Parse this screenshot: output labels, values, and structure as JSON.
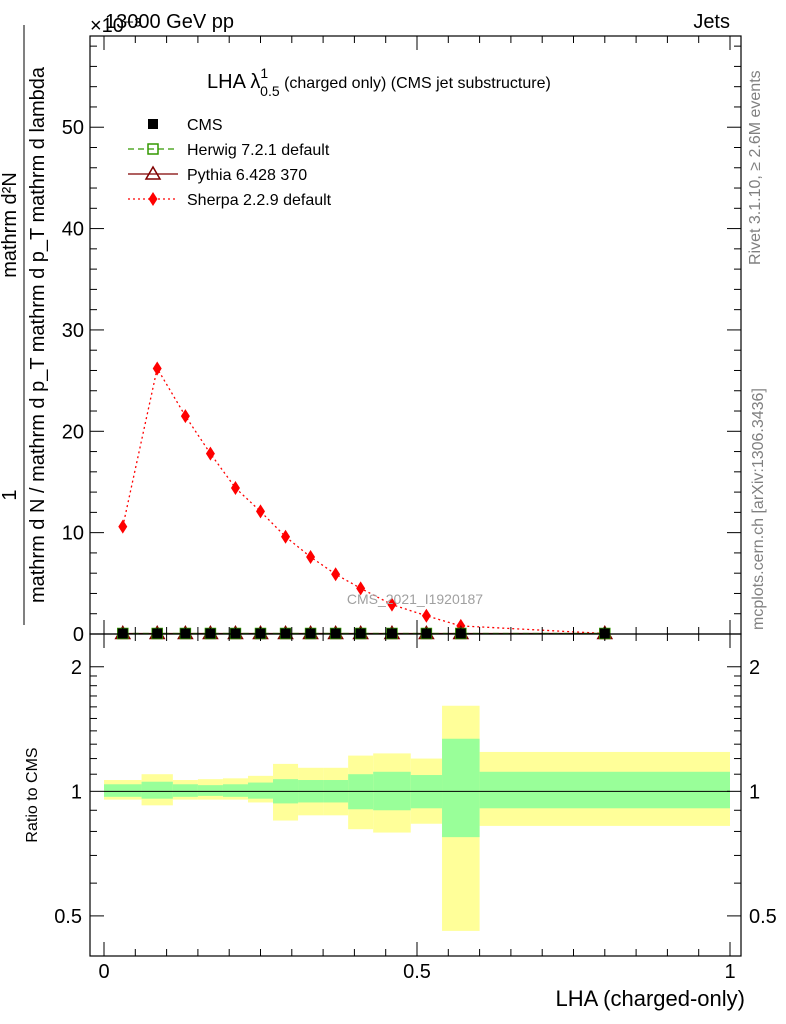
{
  "header": {
    "left": "13000 GeV pp",
    "right": "Jets",
    "exponent_label": "×10⁻³"
  },
  "side_text": {
    "top": "Rivet 3.1.10, ≥ 2.6M events",
    "bottom": "mcplots.cern.ch [arXiv:1306.3436]"
  },
  "watermark": "CMS_2021_I1920187",
  "colors": {
    "cms": "#000000",
    "herwig": "#339900",
    "pythia": "#800000",
    "sherpa": "#ff0000",
    "band_inner": "#99ff99",
    "band_outer": "#ffff99"
  },
  "chart_data": [
    {
      "type": "line",
      "title_main": "LHA λ",
      "title_sup": "1",
      "title_sub": "0.5",
      "title_rest": " (charged only) (CMS jet substructure)",
      "ylabel_num": "1",
      "ylabel_den": "mathrm d N / mathrm d p_T mathrm d p_T mathrm d lambda",
      "ylabel_numerator_text": "mathrm d²N",
      "xlim": [
        0,
        1
      ],
      "ylim": [
        0,
        59
      ],
      "y_scale_note": "×10⁻³",
      "yticks": [
        0,
        10,
        20,
        30,
        40,
        50
      ],
      "legend_position": "top-left",
      "series": [
        {
          "name": "CMS",
          "style": "marker-square",
          "x": [
            0.03,
            0.085,
            0.13,
            0.17,
            0.21,
            0.25,
            0.29,
            0.33,
            0.37,
            0.41,
            0.46,
            0.515,
            0.57,
            0.8
          ],
          "values": [
            0.05,
            0.05,
            0.05,
            0.05,
            0.05,
            0.05,
            0.05,
            0.05,
            0.05,
            0.05,
            0.05,
            0.05,
            0.05,
            0.05
          ]
        },
        {
          "name": "Herwig 7.2.1 default",
          "style": "marker-open-square-dashed",
          "x": [
            0.03,
            0.085,
            0.13,
            0.17,
            0.21,
            0.25,
            0.29,
            0.33,
            0.37,
            0.41,
            0.46,
            0.515,
            0.57,
            0.8
          ],
          "values": [
            0.05,
            0.05,
            0.05,
            0.05,
            0.05,
            0.05,
            0.05,
            0.05,
            0.05,
            0.05,
            0.05,
            0.05,
            0.05,
            0.05
          ]
        },
        {
          "name": "Pythia 6.428 370",
          "style": "marker-open-triangle-solid",
          "x": [
            0.03,
            0.085,
            0.13,
            0.17,
            0.21,
            0.25,
            0.29,
            0.33,
            0.37,
            0.41,
            0.46,
            0.515,
            0.57,
            0.8
          ],
          "values": [
            0.05,
            0.05,
            0.05,
            0.05,
            0.05,
            0.05,
            0.05,
            0.05,
            0.05,
            0.05,
            0.05,
            0.05,
            0.05,
            0.05
          ]
        },
        {
          "name": "Sherpa 2.2.9 default",
          "style": "marker-diamond-dotted",
          "x": [
            0.03,
            0.085,
            0.13,
            0.17,
            0.21,
            0.25,
            0.29,
            0.33,
            0.37,
            0.41,
            0.46,
            0.515,
            0.57,
            0.8
          ],
          "values": [
            10.6,
            26.2,
            21.5,
            17.8,
            14.4,
            12.1,
            9.6,
            7.6,
            5.9,
            4.5,
            2.9,
            1.8,
            0.8,
            0.05
          ]
        }
      ]
    },
    {
      "type": "area",
      "ylabel": "Ratio to CMS",
      "xlabel": "LHA (charged-only)",
      "xlim": [
        0,
        1
      ],
      "ylim": [
        0.4,
        2.4
      ],
      "y_scale": "log",
      "yticks": [
        0.5,
        1,
        2
      ],
      "xticks": [
        0,
        0.5,
        1
      ],
      "ref_line": 1.0,
      "bins": [
        {
          "lo": 0.0,
          "hi": 0.06,
          "inner": [
            0.97,
            1.04
          ],
          "outer": [
            0.955,
            1.065
          ]
        },
        {
          "lo": 0.06,
          "hi": 0.11,
          "inner": [
            0.96,
            1.055
          ],
          "outer": [
            0.925,
            1.1
          ]
        },
        {
          "lo": 0.11,
          "hi": 0.15,
          "inner": [
            0.97,
            1.04
          ],
          "outer": [
            0.955,
            1.065
          ]
        },
        {
          "lo": 0.15,
          "hi": 0.19,
          "inner": [
            0.975,
            1.035
          ],
          "outer": [
            0.955,
            1.07
          ]
        },
        {
          "lo": 0.19,
          "hi": 0.23,
          "inner": [
            0.97,
            1.04
          ],
          "outer": [
            0.955,
            1.075
          ]
        },
        {
          "lo": 0.23,
          "hi": 0.27,
          "inner": [
            0.96,
            1.05
          ],
          "outer": [
            0.94,
            1.09
          ]
        },
        {
          "lo": 0.27,
          "hi": 0.31,
          "inner": [
            0.935,
            1.07
          ],
          "outer": [
            0.85,
            1.165
          ]
        },
        {
          "lo": 0.31,
          "hi": 0.35,
          "inner": [
            0.94,
            1.065
          ],
          "outer": [
            0.875,
            1.14
          ]
        },
        {
          "lo": 0.35,
          "hi": 0.39,
          "inner": [
            0.94,
            1.065
          ],
          "outer": [
            0.875,
            1.14
          ]
        },
        {
          "lo": 0.39,
          "hi": 0.43,
          "inner": [
            0.905,
            1.1
          ],
          "outer": [
            0.81,
            1.22
          ]
        },
        {
          "lo": 0.43,
          "hi": 0.49,
          "inner": [
            0.9,
            1.115
          ],
          "outer": [
            0.795,
            1.235
          ]
        },
        {
          "lo": 0.49,
          "hi": 0.54,
          "inner": [
            0.91,
            1.095
          ],
          "outer": [
            0.835,
            1.2
          ]
        },
        {
          "lo": 0.54,
          "hi": 0.6,
          "inner": [
            0.775,
            1.34
          ],
          "outer": [
            0.46,
            1.61
          ]
        },
        {
          "lo": 0.6,
          "hi": 1.0,
          "inner": [
            0.91,
            1.115
          ],
          "outer": [
            0.825,
            1.245
          ]
        }
      ]
    }
  ]
}
